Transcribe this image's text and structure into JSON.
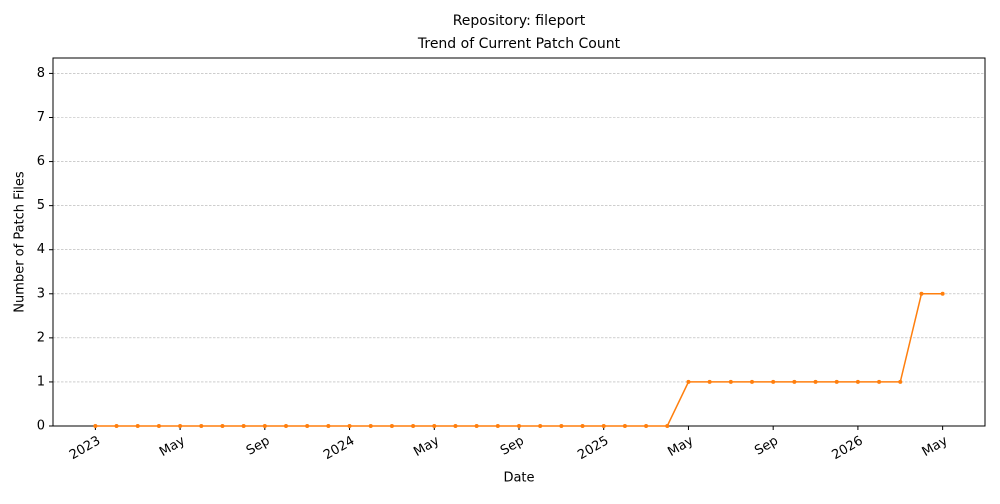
{
  "chart_data": {
    "type": "line",
    "title": "Repository: fileport",
    "subtitle": "Trend of Current Patch Count",
    "x_label": "Date",
    "y_label": "Number of Patch Files",
    "x": [
      "2023-01",
      "2023-02",
      "2023-03",
      "2023-04",
      "2023-05",
      "2023-06",
      "2023-07",
      "2023-08",
      "2023-09",
      "2023-10",
      "2023-11",
      "2023-12",
      "2024-01",
      "2024-02",
      "2024-03",
      "2024-04",
      "2024-05",
      "2024-06",
      "2024-07",
      "2024-08",
      "2024-09",
      "2024-10",
      "2024-11",
      "2024-12",
      "2025-01",
      "2025-02",
      "2025-03",
      "2025-04",
      "2025-05",
      "2025-06",
      "2025-07",
      "2025-08",
      "2025-09",
      "2025-10",
      "2025-11",
      "2025-12",
      "2026-01",
      "2026-02",
      "2026-03",
      "2026-04",
      "2026-05"
    ],
    "series": [
      {
        "name": "Current Patch Count",
        "color": "#ff7f0e",
        "values": [
          0,
          0,
          0,
          0,
          0,
          0,
          0,
          0,
          0,
          0,
          0,
          0,
          0,
          0,
          0,
          0,
          0,
          0,
          0,
          0,
          0,
          0,
          0,
          0,
          0,
          0,
          0,
          0,
          1,
          1,
          1,
          1,
          1,
          1,
          1,
          1,
          1,
          1,
          1,
          3,
          3
        ]
      }
    ],
    "xlim": [
      "2022-11",
      "2026-07"
    ],
    "xticks": [
      {
        "value": "2023-01",
        "label": "2023"
      },
      {
        "value": "2023-05",
        "label": "May"
      },
      {
        "value": "2023-09",
        "label": "Sep"
      },
      {
        "value": "2024-01",
        "label": "2024"
      },
      {
        "value": "2024-05",
        "label": "May"
      },
      {
        "value": "2024-09",
        "label": "Sep"
      },
      {
        "value": "2025-01",
        "label": "2025"
      },
      {
        "value": "2025-05",
        "label": "May"
      },
      {
        "value": "2025-09",
        "label": "Sep"
      },
      {
        "value": "2026-01",
        "label": "2026"
      },
      {
        "value": "2026-05",
        "label": "May"
      }
    ],
    "ylim": [
      0,
      8.35
    ],
    "yticks": [
      0,
      1,
      2,
      3,
      4,
      5,
      6,
      7,
      8
    ],
    "grid": true
  }
}
